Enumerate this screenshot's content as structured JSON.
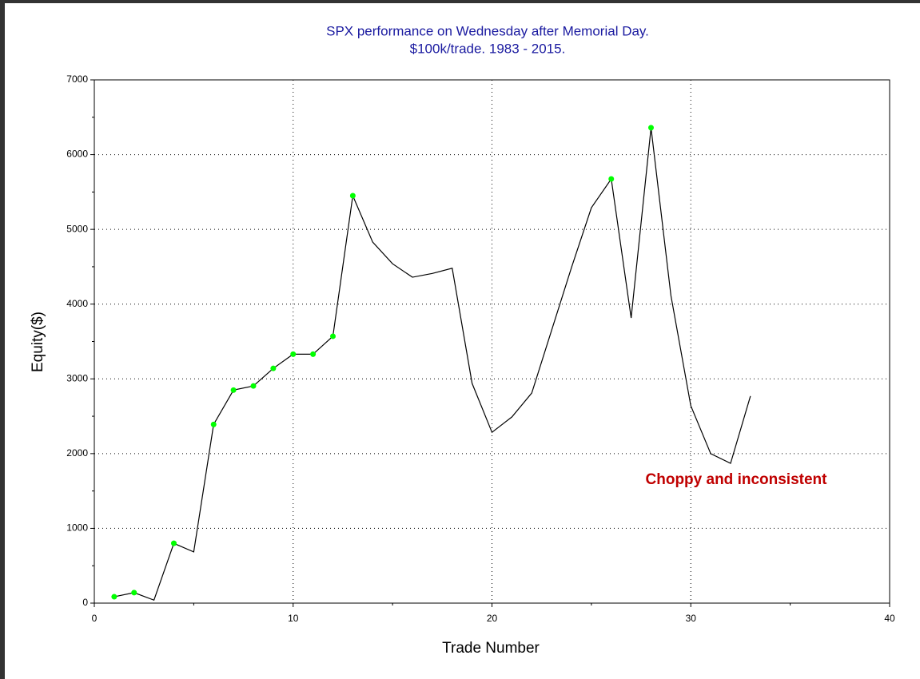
{
  "chart_data": {
    "type": "line",
    "title": "SPX performance on Wednesday after Memorial Day.",
    "subtitle": "$100k/trade. 1983 - 2015.",
    "x_label": "Trade Number",
    "y_label": "Equity($)",
    "annotation": "Choppy and inconsistent",
    "annotation_color": "#c00000",
    "x": [
      1,
      2,
      3,
      4,
      5,
      6,
      7,
      8,
      9,
      10,
      11,
      12,
      13,
      14,
      15,
      16,
      17,
      18,
      19,
      20,
      21,
      22,
      23,
      24,
      25,
      26,
      27,
      28,
      29,
      30,
      31,
      32,
      33
    ],
    "series": [
      {
        "color": "#000000",
        "values": [
          85,
          140,
          40,
          800,
          685,
          2390,
          2850,
          2905,
          3140,
          3330,
          3330,
          3570,
          5450,
          4830,
          4540,
          4360,
          4410,
          4480,
          2940,
          2285,
          2490,
          2810,
          3650,
          4490,
          5290,
          5675,
          3815,
          6360,
          4115,
          2640,
          2000,
          1870,
          2770
        ]
      }
    ],
    "marker_points": [
      1,
      2,
      4,
      6,
      7,
      8,
      9,
      10,
      11,
      12,
      13,
      26,
      28
    ],
    "marker_color": "#00ff00",
    "xlim": [
      0,
      40
    ],
    "xticks": [
      0,
      10,
      20,
      30,
      40
    ],
    "xminorticks": [
      5,
      15,
      25,
      35
    ],
    "ylim": [
      0,
      7000
    ],
    "yticks": [
      0,
      1000,
      2000,
      3000,
      4000,
      5000,
      6000,
      7000
    ],
    "yminorticks": [
      500,
      1500,
      2500,
      3500,
      4500,
      5500,
      6500
    ],
    "grid": true
  }
}
